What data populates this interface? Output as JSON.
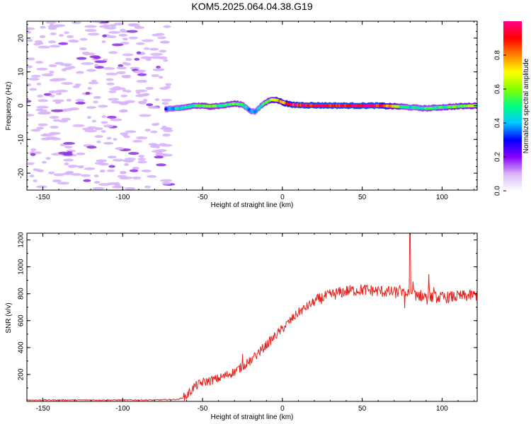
{
  "title": "KOM5.2025.064.04.38.G19",
  "chart_data": [
    {
      "type": "heatmap",
      "title": "KOM5.2025.064.04.38.G19",
      "xlabel": "Height of straight line (km)",
      "ylabel": "Frequency (Hz)",
      "xlim": [
        -160,
        122
      ],
      "ylim": [
        -25,
        25
      ],
      "x_ticks": [
        -150,
        -100,
        -50,
        0,
        50,
        100
      ],
      "y_ticks": [
        -20,
        -10,
        0,
        10,
        20
      ],
      "colorbar": {
        "label": "Normalized spectral amplitude",
        "range": [
          0,
          1
        ],
        "ticks": [
          0.0,
          0.2,
          0.4,
          0.6,
          0.8
        ],
        "colormap": [
          "#ffffff",
          "#d8b4f8",
          "#8800ff",
          "#0000ff",
          "#00c8ff",
          "#00ff80",
          "#88ff00",
          "#ffff00",
          "#ff8000",
          "#ff0000",
          "#ff0088"
        ]
      },
      "noise_region": {
        "x_range": [
          -160,
          -70
        ],
        "y_range": [
          -25,
          25
        ],
        "level": 0.1
      },
      "signal_trace": {
        "x": [
          -73,
          -65,
          -55,
          -45,
          -38,
          -30,
          -25,
          -20,
          -17,
          -12,
          -7,
          -3,
          0,
          5,
          10,
          20,
          40,
          60,
          75,
          80,
          90,
          100,
          110,
          122
        ],
        "freq": [
          -1,
          -0.8,
          0,
          -0.2,
          0,
          0.6,
          0.3,
          -1.5,
          -1.8,
          0.5,
          1.8,
          1.6,
          1.0,
          0.3,
          0.2,
          0.1,
          0.0,
          0.0,
          -0.3,
          -0.5,
          -0.8,
          -0.5,
          -0.2,
          0.0
        ],
        "amplitude": [
          0.35,
          0.45,
          0.5,
          0.55,
          0.5,
          0.55,
          0.5,
          0.35,
          0.4,
          0.5,
          0.6,
          0.7,
          0.8,
          0.9,
          0.95,
          0.95,
          0.95,
          0.95,
          0.5,
          0.45,
          0.5,
          0.5,
          0.55,
          0.6
        ]
      }
    },
    {
      "type": "line",
      "xlabel": "Height of straight line (km)",
      "ylabel": "SNR (v/v)",
      "xlim": [
        -160,
        122
      ],
      "ylim": [
        0,
        1250
      ],
      "x_ticks": [
        -150,
        -100,
        -50,
        0,
        50,
        100
      ],
      "y_ticks": [
        200,
        400,
        600,
        800,
        1000,
        1200
      ],
      "color": "#e8231e",
      "series": [
        {
          "x": [
            -160,
            -140,
            -120,
            -100,
            -80,
            -65,
            -60,
            -55,
            -50,
            -40,
            -30,
            -25,
            -20,
            -15,
            -10,
            -5,
            0,
            5,
            10,
            15,
            20,
            25,
            30,
            40,
            50,
            60,
            70,
            75,
            80,
            85,
            90,
            100,
            110,
            122
          ],
          "values": [
            10,
            10,
            10,
            10,
            10,
            15,
            40,
            110,
            140,
            170,
            220,
            260,
            300,
            360,
            420,
            480,
            540,
            600,
            660,
            700,
            740,
            770,
            790,
            820,
            830,
            820,
            810,
            800,
            800,
            790,
            780,
            770,
            780,
            790
          ]
        }
      ]
    }
  ]
}
